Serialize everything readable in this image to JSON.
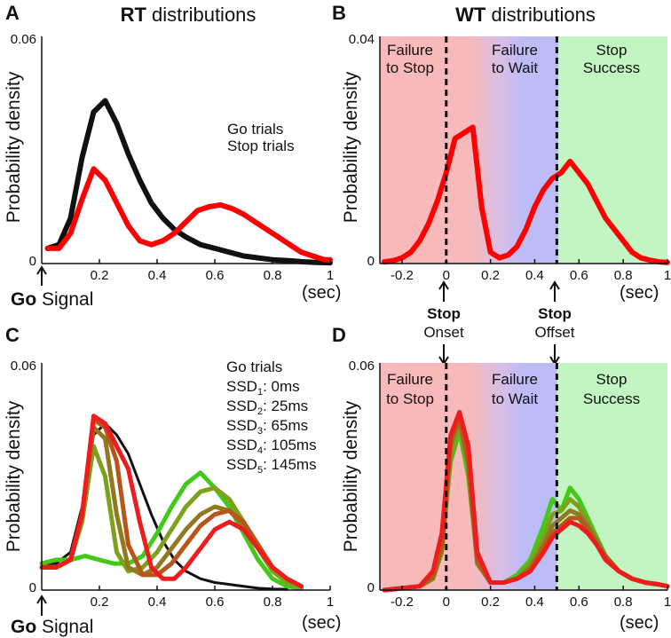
{
  "chart_data": [
    {
      "id": "A",
      "panel_letter": "A",
      "type": "line",
      "title_bold": "RT",
      "title_rest": " distributions",
      "xlabel": "(sec)",
      "ylabel": "Probability density",
      "xlim": [
        0,
        1
      ],
      "ylim": [
        0,
        0.06
      ],
      "xticks": [
        0.2,
        0.4,
        0.6,
        0.8,
        1
      ],
      "xtick_labels": [
        "0.2",
        "0.4",
        "0.6",
        "0.8",
        "1"
      ],
      "yticks": [
        0,
        0.06
      ],
      "ytick_labels": [
        "0",
        "0.06"
      ],
      "origin_bold": "Go",
      "origin_rest": " Signal",
      "legend": [
        {
          "name": "Go trials",
          "color": "#111111"
        },
        {
          "name": "Stop trials",
          "color": "#ff0000"
        }
      ],
      "series": [
        {
          "name": "Go trials",
          "color": "#111111",
          "width": 6,
          "x": [
            0.02,
            0.06,
            0.1,
            0.14,
            0.18,
            0.22,
            0.26,
            0.3,
            0.34,
            0.38,
            0.42,
            0.46,
            0.5,
            0.55,
            0.6,
            0.65,
            0.7,
            0.75,
            0.8,
            0.85,
            0.9,
            0.95,
            1.0
          ],
          "y": [
            0.004,
            0.005,
            0.012,
            0.028,
            0.04,
            0.043,
            0.037,
            0.029,
            0.022,
            0.016,
            0.012,
            0.009,
            0.007,
            0.005,
            0.004,
            0.003,
            0.002,
            0.0015,
            0.001,
            0.0008,
            0.0005,
            0.0003,
            0.0002
          ]
        },
        {
          "name": "Stop trials",
          "color": "#ff0000",
          "width": 6,
          "x": [
            0.02,
            0.06,
            0.1,
            0.14,
            0.18,
            0.22,
            0.26,
            0.3,
            0.34,
            0.38,
            0.42,
            0.46,
            0.5,
            0.54,
            0.58,
            0.62,
            0.66,
            0.7,
            0.74,
            0.78,
            0.82,
            0.86,
            0.9,
            0.94,
            0.98,
            1.0
          ],
          "y": [
            0.004,
            0.004,
            0.008,
            0.017,
            0.025,
            0.022,
            0.016,
            0.01,
            0.006,
            0.005,
            0.006,
            0.008,
            0.011,
            0.014,
            0.015,
            0.0155,
            0.0145,
            0.013,
            0.011,
            0.009,
            0.007,
            0.005,
            0.003,
            0.002,
            0.001,
            0.001
          ]
        }
      ]
    },
    {
      "id": "B",
      "panel_letter": "B",
      "type": "line",
      "title_bold": "WT",
      "title_rest": " distributions",
      "xlabel": "(sec)",
      "ylabel": "Probability density",
      "xlim": [
        -0.3,
        1
      ],
      "ylim": [
        0,
        0.04
      ],
      "xticks": [
        -0.2,
        0,
        0.2,
        0.4,
        0.6,
        0.8,
        1
      ],
      "xtick_labels": [
        "-0.2",
        "0",
        "0.2",
        "0.4",
        "0.6",
        "0.8",
        "1"
      ],
      "yticks": [
        0,
        0.04
      ],
      "ytick_labels": [
        "0",
        "0.04"
      ],
      "vlines": [
        0,
        0.5
      ],
      "regions": [
        {
          "label_line1": "Failure",
          "label_line2": "to Stop",
          "from": -0.3,
          "to": 0,
          "color": "#f7b9b9"
        },
        {
          "label_line1": "Failure",
          "label_line2": "to Wait",
          "from": 0.15,
          "to": 0.5,
          "color": "#bcbcf7"
        },
        {
          "label_line1": "Stop",
          "label_line2": "Success",
          "from": 0.5,
          "to": 1,
          "color": "#c3f5c3"
        }
      ],
      "series": [
        {
          "name": "Stop trials",
          "color": "#ff0000",
          "width": 6,
          "x": [
            -0.28,
            -0.24,
            -0.2,
            -0.16,
            -0.12,
            -0.08,
            -0.04,
            0,
            0.04,
            0.08,
            0.12,
            0.16,
            0.2,
            0.24,
            0.28,
            0.32,
            0.36,
            0.4,
            0.44,
            0.48,
            0.52,
            0.56,
            0.6,
            0.64,
            0.68,
            0.72,
            0.76,
            0.8,
            0.84,
            0.88,
            0.92,
            0.96,
            1.0
          ],
          "y": [
            0.0003,
            0.0005,
            0.001,
            0.002,
            0.004,
            0.007,
            0.011,
            0.016,
            0.022,
            0.023,
            0.024,
            0.01,
            0.002,
            0.001,
            0.0015,
            0.003,
            0.006,
            0.01,
            0.013,
            0.015,
            0.016,
            0.018,
            0.016,
            0.014,
            0.011,
            0.008,
            0.006,
            0.004,
            0.002,
            0.001,
            0.0006,
            0.0003,
            0.0002
          ]
        }
      ]
    },
    {
      "id": "C",
      "panel_letter": "C",
      "type": "line",
      "xlabel": "(sec)",
      "ylabel": "Probability density",
      "xlim": [
        0,
        1
      ],
      "ylim": [
        0,
        0.06
      ],
      "xticks": [
        0.2,
        0.4,
        0.6,
        0.8,
        1
      ],
      "xtick_labels": [
        "0.2",
        "0.4",
        "0.6",
        "0.8",
        "1"
      ],
      "yticks": [
        0,
        0.06
      ],
      "ytick_labels": [
        "0",
        "0.06"
      ],
      "origin_bold": "Go",
      "origin_rest": " Signal",
      "legend": [
        {
          "main": "Go trials",
          "sub": "",
          "rest": "",
          "color": "#111111"
        },
        {
          "main": "SSD",
          "sub": "1",
          "rest": ": 0ms",
          "color": "#44c81a"
        },
        {
          "main": "SSD",
          "sub": "2",
          "rest": ": 25ms",
          "color": "#7fa01c"
        },
        {
          "main": "SSD",
          "sub": "3",
          "rest": ": 65ms",
          "color": "#8f7a1f"
        },
        {
          "main": "SSD",
          "sub": "4",
          "rest": ": 105ms",
          "color": "#b6561c"
        },
        {
          "main": "SSD",
          "sub": "5",
          "rest": ": 145ms",
          "color": "#ee1c1c"
        }
      ],
      "series": [
        {
          "name": "Go trials",
          "color": "#111111",
          "width": 3,
          "x": [
            0.0,
            0.05,
            0.1,
            0.14,
            0.18,
            0.22,
            0.26,
            0.3,
            0.34,
            0.38,
            0.42,
            0.46,
            0.5,
            0.55,
            0.6,
            0.65,
            0.7,
            0.75,
            0.8,
            0.85
          ],
          "y": [
            0.007,
            0.007,
            0.01,
            0.022,
            0.041,
            0.044,
            0.041,
            0.036,
            0.028,
            0.02,
            0.013,
            0.008,
            0.005,
            0.003,
            0.002,
            0.0015,
            0.001,
            0.0005,
            0.0003,
            0.0002
          ]
        },
        {
          "name": "SSD1: 0ms",
          "color": "#44c81a",
          "width": 5,
          "x": [
            0.0,
            0.05,
            0.1,
            0.15,
            0.2,
            0.25,
            0.3,
            0.35,
            0.4,
            0.45,
            0.5,
            0.55,
            0.6,
            0.65,
            0.7,
            0.75,
            0.8,
            0.85,
            0.9
          ],
          "y": [
            0.007,
            0.008,
            0.008,
            0.009,
            0.008,
            0.007,
            0.007,
            0.009,
            0.015,
            0.022,
            0.028,
            0.031,
            0.027,
            0.022,
            0.015,
            0.008,
            0.003,
            0.001,
            0.0005
          ]
        },
        {
          "name": "SSD2: 25ms",
          "color": "#7fa01c",
          "width": 5,
          "x": [
            0.0,
            0.05,
            0.1,
            0.14,
            0.18,
            0.22,
            0.26,
            0.3,
            0.35,
            0.4,
            0.45,
            0.5,
            0.55,
            0.6,
            0.65,
            0.7,
            0.75,
            0.8,
            0.85,
            0.9
          ],
          "y": [
            0.006,
            0.006,
            0.008,
            0.018,
            0.038,
            0.03,
            0.01,
            0.005,
            0.006,
            0.01,
            0.016,
            0.022,
            0.026,
            0.027,
            0.024,
            0.018,
            0.011,
            0.005,
            0.002,
            0.001
          ]
        },
        {
          "name": "SSD3: 65ms",
          "color": "#8f7a1f",
          "width": 5,
          "x": [
            0.0,
            0.05,
            0.1,
            0.14,
            0.18,
            0.22,
            0.26,
            0.3,
            0.35,
            0.4,
            0.45,
            0.5,
            0.55,
            0.6,
            0.65,
            0.7,
            0.75,
            0.8,
            0.85,
            0.9
          ],
          "y": [
            0.006,
            0.006,
            0.008,
            0.02,
            0.043,
            0.04,
            0.02,
            0.006,
            0.004,
            0.006,
            0.011,
            0.016,
            0.02,
            0.022,
            0.021,
            0.017,
            0.011,
            0.006,
            0.003,
            0.001
          ]
        },
        {
          "name": "SSD4: 105ms",
          "color": "#b6561c",
          "width": 5,
          "x": [
            0.0,
            0.05,
            0.1,
            0.14,
            0.18,
            0.22,
            0.26,
            0.3,
            0.35,
            0.4,
            0.45,
            0.5,
            0.55,
            0.6,
            0.65,
            0.7,
            0.75,
            0.8,
            0.85,
            0.9
          ],
          "y": [
            0.006,
            0.006,
            0.008,
            0.02,
            0.045,
            0.043,
            0.034,
            0.012,
            0.004,
            0.004,
            0.007,
            0.012,
            0.017,
            0.02,
            0.021,
            0.018,
            0.012,
            0.006,
            0.003,
            0.001
          ]
        },
        {
          "name": "SSD5: 145ms",
          "color": "#ee1c1c",
          "width": 5,
          "x": [
            0.0,
            0.05,
            0.1,
            0.14,
            0.18,
            0.22,
            0.26,
            0.3,
            0.34,
            0.38,
            0.42,
            0.46,
            0.5,
            0.55,
            0.6,
            0.65,
            0.7,
            0.75,
            0.8,
            0.85,
            0.9
          ],
          "y": [
            0.006,
            0.006,
            0.008,
            0.02,
            0.046,
            0.044,
            0.038,
            0.032,
            0.018,
            0.006,
            0.003,
            0.003,
            0.006,
            0.011,
            0.016,
            0.018,
            0.016,
            0.011,
            0.006,
            0.003,
            0.001
          ]
        }
      ]
    },
    {
      "id": "D",
      "panel_letter": "D",
      "type": "line",
      "xlabel": "(sec)",
      "ylabel": "Probability density",
      "xlim": [
        -0.3,
        1
      ],
      "ylim": [
        0,
        0.06
      ],
      "xticks": [
        -0.2,
        0,
        0.2,
        0.4,
        0.6,
        0.8,
        1
      ],
      "xtick_labels": [
        "-0.2",
        "0",
        "0.2",
        "0.4",
        "0.6",
        "0.8",
        "1"
      ],
      "yticks": [
        0,
        0.06
      ],
      "ytick_labels": [
        "0",
        "0.06"
      ],
      "vlines": [
        0,
        0.5
      ],
      "regions": [
        {
          "label_line1": "Failure",
          "label_line2": "to Stop",
          "from": -0.3,
          "to": 0,
          "color": "#f7b9b9"
        },
        {
          "label_line1": "Failure",
          "label_line2": "to Wait",
          "from": 0.15,
          "to": 0.5,
          "color": "#bcbcf7"
        },
        {
          "label_line1": "Stop",
          "label_line2": "Success",
          "from": 0.5,
          "to": 1,
          "color": "#c3f5c3"
        }
      ],
      "series": [
        {
          "name": "SSD1: 0ms",
          "color": "#44c81a",
          "width": 5,
          "x": [
            -0.28,
            -0.2,
            -0.12,
            -0.06,
            -0.02,
            0.02,
            0.06,
            0.1,
            0.14,
            0.2,
            0.26,
            0.32,
            0.38,
            0.44,
            0.48,
            0.52,
            0.56,
            0.6,
            0.64,
            0.68,
            0.72,
            0.78,
            0.84,
            0.9,
            0.96,
            1.0
          ],
          "y": [
            0.0,
            0.0005,
            0.001,
            0.004,
            0.012,
            0.034,
            0.042,
            0.03,
            0.008,
            0.002,
            0.002,
            0.004,
            0.008,
            0.017,
            0.024,
            0.021,
            0.027,
            0.024,
            0.019,
            0.014,
            0.009,
            0.005,
            0.003,
            0.002,
            0.0015,
            0.001
          ]
        },
        {
          "name": "SSD2: 25ms",
          "color": "#7fa01c",
          "width": 5,
          "x": [
            -0.28,
            -0.2,
            -0.12,
            -0.06,
            -0.02,
            0.02,
            0.06,
            0.1,
            0.14,
            0.2,
            0.26,
            0.32,
            0.38,
            0.44,
            0.48,
            0.52,
            0.56,
            0.6,
            0.64,
            0.68,
            0.72,
            0.78,
            0.84,
            0.9,
            0.96,
            1.0
          ],
          "y": [
            0.0,
            0.0005,
            0.001,
            0.003,
            0.01,
            0.035,
            0.044,
            0.032,
            0.008,
            0.002,
            0.002,
            0.003,
            0.007,
            0.014,
            0.02,
            0.021,
            0.024,
            0.022,
            0.018,
            0.013,
            0.009,
            0.005,
            0.003,
            0.002,
            0.0015,
            0.001
          ]
        },
        {
          "name": "SSD3: 65ms",
          "color": "#8f7a1f",
          "width": 5,
          "x": [
            -0.28,
            -0.2,
            -0.12,
            -0.06,
            -0.02,
            0.02,
            0.06,
            0.1,
            0.14,
            0.2,
            0.26,
            0.32,
            0.38,
            0.44,
            0.48,
            0.52,
            0.56,
            0.6,
            0.64,
            0.68,
            0.72,
            0.78,
            0.84,
            0.9,
            0.96,
            1.0
          ],
          "y": [
            0.0,
            0.0005,
            0.001,
            0.003,
            0.011,
            0.038,
            0.046,
            0.033,
            0.007,
            0.002,
            0.002,
            0.003,
            0.006,
            0.012,
            0.017,
            0.019,
            0.021,
            0.02,
            0.017,
            0.013,
            0.009,
            0.005,
            0.003,
            0.002,
            0.0015,
            0.001
          ]
        },
        {
          "name": "SSD4: 105ms",
          "color": "#b6561c",
          "width": 5,
          "x": [
            -0.28,
            -0.2,
            -0.12,
            -0.06,
            -0.02,
            0.02,
            0.06,
            0.1,
            0.14,
            0.2,
            0.26,
            0.32,
            0.38,
            0.44,
            0.48,
            0.52,
            0.56,
            0.6,
            0.64,
            0.68,
            0.72,
            0.78,
            0.84,
            0.9,
            0.96,
            1.0
          ],
          "y": [
            0.0,
            0.0005,
            0.001,
            0.004,
            0.012,
            0.04,
            0.045,
            0.034,
            0.008,
            0.002,
            0.002,
            0.003,
            0.005,
            0.011,
            0.015,
            0.017,
            0.019,
            0.019,
            0.016,
            0.012,
            0.009,
            0.005,
            0.003,
            0.002,
            0.0015,
            0.001
          ]
        },
        {
          "name": "SSD5: 145ms",
          "color": "#ee1c1c",
          "width": 5,
          "x": [
            -0.28,
            -0.2,
            -0.12,
            -0.06,
            -0.02,
            0.02,
            0.06,
            0.1,
            0.14,
            0.2,
            0.26,
            0.32,
            0.38,
            0.44,
            0.48,
            0.52,
            0.56,
            0.6,
            0.64,
            0.68,
            0.72,
            0.78,
            0.84,
            0.9,
            0.96,
            1.0
          ],
          "y": [
            0.0,
            0.0005,
            0.001,
            0.005,
            0.015,
            0.041,
            0.047,
            0.038,
            0.01,
            0.002,
            0.002,
            0.003,
            0.005,
            0.01,
            0.014,
            0.016,
            0.018,
            0.017,
            0.015,
            0.012,
            0.008,
            0.005,
            0.003,
            0.002,
            0.0015,
            0.001
          ]
        }
      ]
    }
  ],
  "annotations": {
    "stop_onset_bold": "Stop",
    "stop_onset_rest": "Onset",
    "stop_offset_bold": "Stop",
    "stop_offset_rest": "Offset"
  }
}
